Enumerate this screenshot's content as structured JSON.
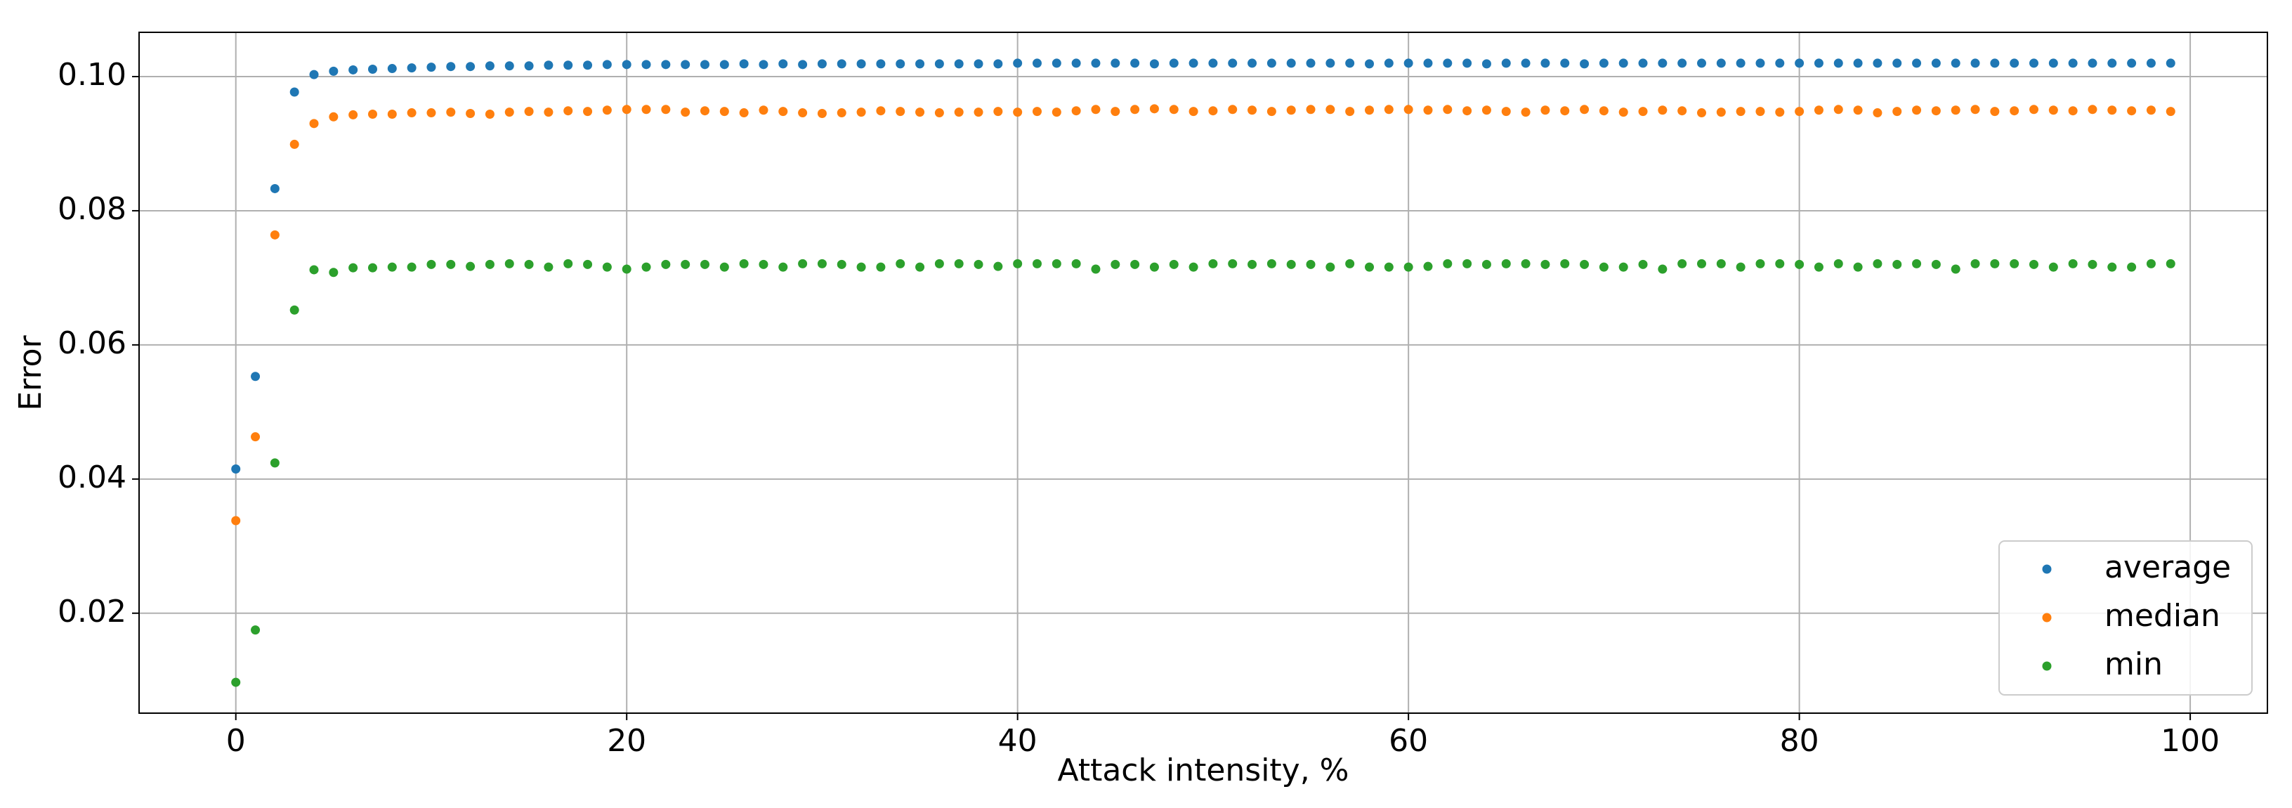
{
  "chart_data": {
    "type": "scatter",
    "xlabel": "Attack intensity, %",
    "ylabel": "Error",
    "x": [
      0,
      1,
      2,
      3,
      4,
      5,
      6,
      7,
      8,
      9,
      10,
      11,
      12,
      13,
      14,
      15,
      16,
      17,
      18,
      19,
      20,
      21,
      22,
      23,
      24,
      25,
      26,
      27,
      28,
      29,
      30,
      31,
      32,
      33,
      34,
      35,
      36,
      37,
      38,
      39,
      40,
      41,
      42,
      43,
      44,
      45,
      46,
      47,
      48,
      49,
      50,
      51,
      52,
      53,
      54,
      55,
      56,
      57,
      58,
      59,
      60,
      61,
      62,
      63,
      64,
      65,
      66,
      67,
      68,
      69,
      70,
      71,
      72,
      73,
      74,
      75,
      76,
      77,
      78,
      79,
      80,
      81,
      82,
      83,
      84,
      85,
      86,
      87,
      88,
      89,
      90,
      91,
      92,
      93,
      94,
      95,
      96,
      97,
      98,
      99
    ],
    "series": [
      {
        "name": "average",
        "color": "#1f77b4",
        "values": [
          0.0415,
          0.0553,
          0.0833,
          0.0977,
          0.1003,
          0.1008,
          0.101,
          0.1011,
          0.1012,
          0.1013,
          0.1014,
          0.1015,
          0.1015,
          0.1016,
          0.1016,
          0.1016,
          0.1017,
          0.1017,
          0.1017,
          0.1018,
          0.1018,
          0.1018,
          0.1018,
          0.1018,
          0.1018,
          0.1018,
          0.1019,
          0.1018,
          0.1019,
          0.1018,
          0.1019,
          0.1019,
          0.1019,
          0.1019,
          0.1019,
          0.1019,
          0.1019,
          0.1019,
          0.1019,
          0.1019,
          0.102,
          0.102,
          0.102,
          0.102,
          0.102,
          0.102,
          0.102,
          0.1019,
          0.102,
          0.102,
          0.102,
          0.102,
          0.102,
          0.102,
          0.102,
          0.102,
          0.102,
          0.102,
          0.1019,
          0.102,
          0.102,
          0.102,
          0.102,
          0.102,
          0.1019,
          0.102,
          0.102,
          0.102,
          0.102,
          0.1019,
          0.102,
          0.102,
          0.102,
          0.102,
          0.102,
          0.102,
          0.102,
          0.102,
          0.102,
          0.102,
          0.102,
          0.102,
          0.102,
          0.102,
          0.102,
          0.102,
          0.102,
          0.102,
          0.102,
          0.102,
          0.102,
          0.102,
          0.102,
          0.102,
          0.102,
          0.102,
          0.102,
          0.102,
          0.102,
          0.102
        ]
      },
      {
        "name": "median",
        "color": "#ff7f0e",
        "values": [
          0.0338,
          0.0463,
          0.0764,
          0.0899,
          0.093,
          0.094,
          0.0943,
          0.0944,
          0.0944,
          0.0946,
          0.0946,
          0.0947,
          0.0945,
          0.0944,
          0.0947,
          0.0948,
          0.0947,
          0.0949,
          0.0948,
          0.095,
          0.0951,
          0.0951,
          0.0951,
          0.0947,
          0.0949,
          0.0948,
          0.0946,
          0.095,
          0.0948,
          0.0946,
          0.0945,
          0.0946,
          0.0947,
          0.0949,
          0.0948,
          0.0947,
          0.0946,
          0.0947,
          0.0947,
          0.0948,
          0.0947,
          0.0948,
          0.0947,
          0.0949,
          0.0951,
          0.0948,
          0.0951,
          0.0952,
          0.0951,
          0.0948,
          0.0949,
          0.0951,
          0.095,
          0.0948,
          0.095,
          0.0951,
          0.0951,
          0.0948,
          0.095,
          0.0951,
          0.0951,
          0.095,
          0.0951,
          0.0949,
          0.095,
          0.0948,
          0.0947,
          0.095,
          0.0949,
          0.0951,
          0.0949,
          0.0947,
          0.0948,
          0.095,
          0.0949,
          0.0946,
          0.0947,
          0.0948,
          0.0948,
          0.0947,
          0.0948,
          0.095,
          0.0951,
          0.095,
          0.0946,
          0.0948,
          0.095,
          0.0949,
          0.095,
          0.0951,
          0.0948,
          0.0949,
          0.0951,
          0.095,
          0.0949,
          0.0951,
          0.095,
          0.0949,
          0.095,
          0.0948
        ]
      },
      {
        "name": "min",
        "color": "#2ca02c",
        "values": [
          0.0097,
          0.0175,
          0.0424,
          0.0652,
          0.0712,
          0.0708,
          0.0715,
          0.0715,
          0.0716,
          0.0716,
          0.072,
          0.072,
          0.0717,
          0.072,
          0.0721,
          0.072,
          0.0716,
          0.0721,
          0.072,
          0.0716,
          0.0713,
          0.0716,
          0.072,
          0.072,
          0.072,
          0.0716,
          0.0721,
          0.072,
          0.0716,
          0.0721,
          0.0721,
          0.072,
          0.0716,
          0.0716,
          0.0721,
          0.0716,
          0.0721,
          0.0721,
          0.072,
          0.0717,
          0.0721,
          0.0721,
          0.0721,
          0.0721,
          0.0713,
          0.072,
          0.072,
          0.0716,
          0.072,
          0.0716,
          0.0721,
          0.0721,
          0.072,
          0.0721,
          0.072,
          0.072,
          0.0716,
          0.0721,
          0.0716,
          0.0716,
          0.0716,
          0.0717,
          0.0721,
          0.0721,
          0.072,
          0.0721,
          0.0721,
          0.072,
          0.0721,
          0.072,
          0.0716,
          0.0716,
          0.072,
          0.0713,
          0.0721,
          0.0721,
          0.0721,
          0.0716,
          0.0721,
          0.0721,
          0.072,
          0.0716,
          0.0721,
          0.0716,
          0.0721,
          0.072,
          0.0721,
          0.072,
          0.0713,
          0.0721,
          0.0721,
          0.0721,
          0.072,
          0.0716,
          0.0721,
          0.072,
          0.0716,
          0.0716,
          0.0721,
          0.0721
        ]
      }
    ],
    "xlim": [
      -4.95,
      103.95
    ],
    "ylim": [
      0.0051,
      0.1066
    ],
    "xticks": [
      0,
      20,
      40,
      60,
      80,
      100
    ],
    "yticks": [
      0.02,
      0.04,
      0.06,
      0.08,
      {
        "value": 0.1,
        "label": "0.10"
      }
    ],
    "grid": true,
    "legend": "lower right"
  }
}
